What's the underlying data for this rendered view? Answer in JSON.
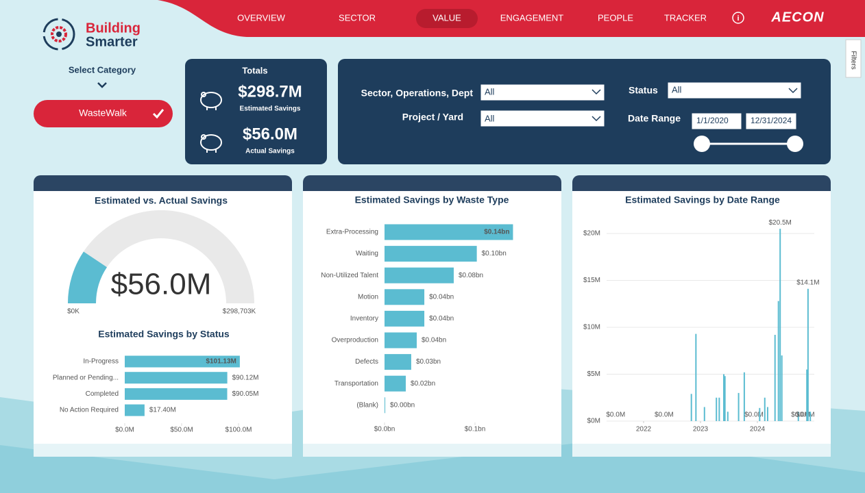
{
  "header": {
    "logo_line1": "Building",
    "logo_line2": "Smarter",
    "nav": [
      "OVERVIEW",
      "SECTOR",
      "VALUE",
      "ENGAGEMENT",
      "PEOPLE",
      "TRACKER"
    ],
    "active": 2,
    "brand": "AECON"
  },
  "sidebar": {
    "label": "Select Category",
    "selected": "WasteWalk"
  },
  "filters_tab": "Filters",
  "totals": {
    "title": "Totals",
    "estimated": {
      "value": "$298.7M",
      "label": "Estimated Savings"
    },
    "actual": {
      "value": "$56.0M",
      "label": "Actual Savings"
    }
  },
  "filters": {
    "sector_label": "Sector, Operations, Dept",
    "sector_value": "All",
    "project_label": "Project / Yard",
    "project_value": "All",
    "status_label": "Status",
    "status_value": "All",
    "date_label": "Date Range",
    "date_start": "1/1/2020",
    "date_end": "12/31/2024"
  },
  "chart_data": [
    {
      "type": "gauge",
      "title": "Estimated vs. Actual Savings",
      "value": 56.0,
      "value_label": "$56.0M",
      "min": {
        "value": 0,
        "label": "$0K"
      },
      "max": {
        "value": 298.703,
        "label": "$298,703K"
      },
      "color": "#5bbcd1",
      "track_color": "#e9e9e9"
    },
    {
      "type": "bar",
      "orientation": "horizontal",
      "title": "Estimated Savings by Status",
      "categories": [
        "In-Progress",
        "Planned or Pending...",
        "Completed",
        "No Action Required"
      ],
      "values": [
        101.13,
        90.12,
        90.05,
        17.4
      ],
      "value_labels": [
        "$101.13M",
        "$90.12M",
        "$90.05M",
        "$17.40M"
      ],
      "color": "#5bbcd1",
      "xlim": [
        0,
        101.5
      ],
      "xticks": [
        {
          "value": 0,
          "label": "$0.0M"
        },
        {
          "value": 50,
          "label": "$50.0M"
        },
        {
          "value": 100,
          "label": "$100.0M"
        }
      ]
    },
    {
      "type": "bar",
      "orientation": "horizontal",
      "title": "Estimated Savings by Waste Type",
      "categories": [
        "Extra-Processing",
        "Waiting",
        "Non-Utilized Talent",
        "Motion",
        "Inventory",
        "Overproduction",
        "Defects",
        "Transportation",
        "(Blank)"
      ],
      "values": [
        0.142,
        0.102,
        0.0765,
        0.044,
        0.044,
        0.0356,
        0.0295,
        0.0235,
        0.0008
      ],
      "value_labels": [
        "$0.14bn",
        "$0.10bn",
        "$0.08bn",
        "$0.04bn",
        "$0.04bn",
        "$0.04bn",
        "$0.03bn",
        "$0.02bn",
        "$0.00bn"
      ],
      "color": "#5bbcd1",
      "xlim": [
        0,
        0.145
      ],
      "xticks": [
        {
          "value": 0,
          "label": "$0.0bn"
        },
        {
          "value": 0.1,
          "label": "$0.1bn"
        }
      ]
    },
    {
      "type": "spike",
      "title": "Estimated Savings by Date Range",
      "x": [
        2021.51,
        2022.36,
        2022.84,
        2022.92,
        2023.07,
        2023.28,
        2023.33,
        2023.41,
        2023.43,
        2023.48,
        2023.67,
        2023.77,
        2023.94,
        2024.04,
        2024.13,
        2024.18,
        2024.31,
        2024.37,
        2024.4,
        2024.43,
        2024.72,
        2024.76,
        2024.84,
        2024.87,
        2024.89,
        2024.93
      ],
      "values": [
        0,
        0,
        2.9,
        9.3,
        1.5,
        2.5,
        2.5,
        5.0,
        4.8,
        1.0,
        3.0,
        5.2,
        0,
        1.4,
        2.5,
        1.5,
        9.2,
        12.8,
        20.5,
        7.0,
        1.0,
        0,
        0,
        5.5,
        14.1,
        1.0
      ],
      "value_labels": [
        "$0.0M",
        "$0.0M",
        null,
        null,
        null,
        null,
        null,
        null,
        null,
        null,
        null,
        null,
        "$0.0M",
        null,
        null,
        null,
        null,
        null,
        "$20.5M",
        null,
        null,
        "$0.0M",
        "$0.0M",
        null,
        "$14.1M",
        null
      ],
      "color": "#5bbcd1",
      "xlim": [
        2021.35,
        2025.0
      ],
      "ylim": [
        0,
        20.8
      ],
      "xticks": [
        2022,
        2023,
        2024
      ],
      "yticks": [
        {
          "value": 0,
          "label": "$0M"
        },
        {
          "value": 5,
          "label": "$5M"
        },
        {
          "value": 10,
          "label": "$10M"
        },
        {
          "value": 15,
          "label": "$15M"
        },
        {
          "value": 20,
          "label": "$20M"
        }
      ],
      "grid": true
    }
  ]
}
